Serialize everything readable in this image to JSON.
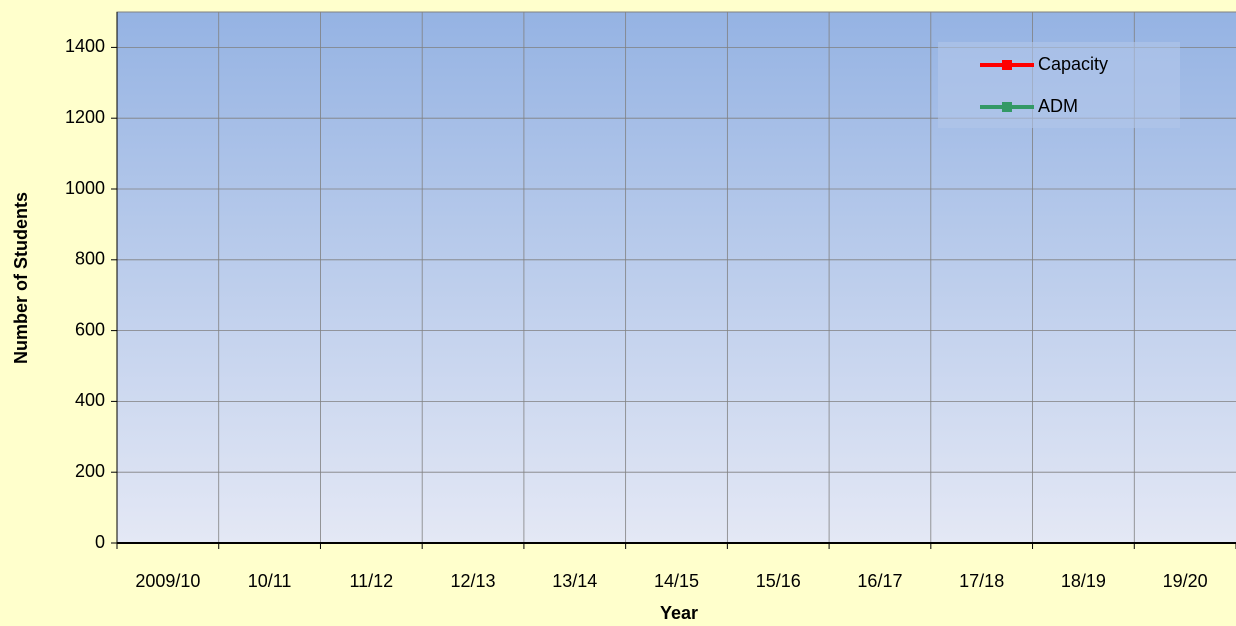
{
  "chart_data": {
    "type": "line",
    "x_label": "Year",
    "y_label": "Number of Students",
    "categories": [
      "2009/10",
      "10/11",
      "11/12",
      "12/13",
      "13/14",
      "14/15",
      "15/16",
      "16/17",
      "17/18",
      "18/19",
      "19/20"
    ],
    "series": [
      {
        "name": "Capacity",
        "color": "#ff0000",
        "values": [
          null,
          null,
          null,
          null,
          null,
          null,
          null,
          null,
          null,
          null,
          null
        ]
      },
      {
        "name": "ADM",
        "color": "#339966",
        "values": [
          null,
          null,
          null,
          null,
          null,
          null,
          null,
          null,
          null,
          null,
          null
        ]
      }
    ],
    "ylim": [
      0,
      1500
    ],
    "yticks": [
      0,
      200,
      400,
      600,
      800,
      1000,
      1200,
      1400
    ],
    "grid": true,
    "legend": "upper right"
  }
}
